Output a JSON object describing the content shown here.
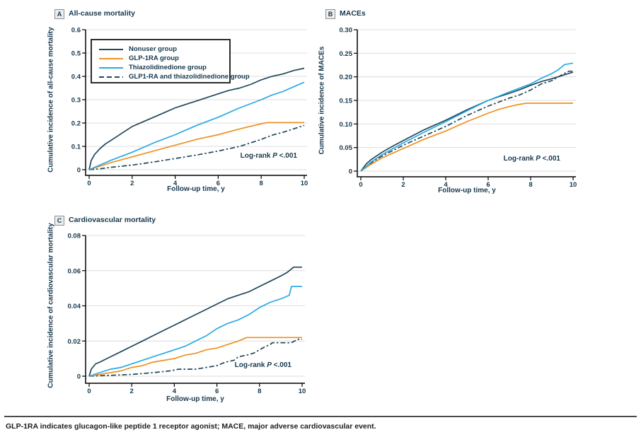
{
  "colors": {
    "navy": "#21475a",
    "orange": "#ee9120",
    "blue": "#29aae2",
    "text": "#16384d",
    "grid": "#dcdcdc",
    "axis": "#000000"
  },
  "legend": {
    "entries": [
      {
        "label": "Nonuser group",
        "color": "#21475a",
        "dashed": false
      },
      {
        "label": "GLP-1RA group",
        "color": "#ee9120",
        "dashed": false
      },
      {
        "label": "Thiazolidinedione group",
        "color": "#29aae2",
        "dashed": false
      },
      {
        "label": "GLP1-RA and thiazolidinedione group",
        "color": "#21475a",
        "dashed": true
      }
    ]
  },
  "annotation": {
    "prefix": "Log-rank ",
    "p": "P",
    "suffix": " <.001"
  },
  "caption": "GLP-1RA indicates glucagon-like peptide 1 receptor agonist; MACE, major adverse cardiovascular event.",
  "chart_data": [
    {
      "type": "line",
      "panel_label": "A",
      "title": "All-cause mortality",
      "ylabel": "Cumulative incidence of all-cause mortality",
      "xlabel": "Follow-up time, y",
      "xlim": [
        0,
        10
      ],
      "ylim": [
        0,
        0.6
      ],
      "xtick_values": [
        0,
        2,
        4,
        6,
        8,
        10
      ],
      "xtick_labels": [
        "0",
        "2",
        "4",
        "6",
        "8",
        "10"
      ],
      "ytick_values": [
        0,
        0.1,
        0.2,
        0.3,
        0.4,
        0.5,
        0.6
      ],
      "ytick_labels": [
        "0",
        "0.1",
        "0.2",
        "0.3",
        "0.4",
        "0.5",
        "0.6"
      ],
      "grid": true,
      "legend_position": "upper-left",
      "annotation": "Log-rank P <.001",
      "series": [
        {
          "name": "Nonuser group",
          "color": "#21475a",
          "dashed": false,
          "points": [
            [
              0,
              0
            ],
            [
              0.1,
              0.04
            ],
            [
              0.25,
              0.065
            ],
            [
              0.5,
              0.09
            ],
            [
              0.75,
              0.11
            ],
            [
              1,
              0.125
            ],
            [
              1.5,
              0.155
            ],
            [
              2,
              0.185
            ],
            [
              2.5,
              0.205
            ],
            [
              3,
              0.225
            ],
            [
              3.5,
              0.245
            ],
            [
              4,
              0.265
            ],
            [
              4.5,
              0.28
            ],
            [
              5,
              0.295
            ],
            [
              5.5,
              0.31
            ],
            [
              6,
              0.325
            ],
            [
              6.5,
              0.34
            ],
            [
              7,
              0.35
            ],
            [
              7.5,
              0.365
            ],
            [
              8,
              0.385
            ],
            [
              8.5,
              0.4
            ],
            [
              9,
              0.41
            ],
            [
              9.5,
              0.425
            ],
            [
              10,
              0.435
            ]
          ]
        },
        {
          "name": "GLP1-RA and thiazolidinedione group",
          "color": "#21475a",
          "dashed": true,
          "points": [
            [
              0,
              0
            ],
            [
              0.5,
              0.004
            ],
            [
              1,
              0.01
            ],
            [
              2,
              0.02
            ],
            [
              3,
              0.033
            ],
            [
              4,
              0.048
            ],
            [
              5,
              0.063
            ],
            [
              6,
              0.08
            ],
            [
              6.5,
              0.09
            ],
            [
              7,
              0.1
            ],
            [
              7.5,
              0.115
            ],
            [
              8,
              0.13
            ],
            [
              8.5,
              0.148
            ],
            [
              9,
              0.16
            ],
            [
              9.5,
              0.175
            ],
            [
              10,
              0.19
            ]
          ]
        },
        {
          "name": "GLP-1RA group",
          "color": "#ee9120",
          "dashed": false,
          "points": [
            [
              0,
              0
            ],
            [
              0.5,
              0.015
            ],
            [
              1,
              0.03
            ],
            [
              2,
              0.055
            ],
            [
              3,
              0.08
            ],
            [
              4,
              0.105
            ],
            [
              5,
              0.13
            ],
            [
              6,
              0.15
            ],
            [
              7,
              0.175
            ],
            [
              8,
              0.197
            ],
            [
              8.3,
              0.202
            ],
            [
              10,
              0.202
            ]
          ]
        },
        {
          "name": "Thiazolidinedione group",
          "color": "#29aae2",
          "dashed": false,
          "points": [
            [
              0,
              0
            ],
            [
              0.5,
              0.02
            ],
            [
              1,
              0.04
            ],
            [
              2,
              0.075
            ],
            [
              3,
              0.115
            ],
            [
              4,
              0.15
            ],
            [
              5,
              0.19
            ],
            [
              6,
              0.225
            ],
            [
              7,
              0.265
            ],
            [
              8,
              0.3
            ],
            [
              8.5,
              0.32
            ],
            [
              9,
              0.335
            ],
            [
              9.5,
              0.355
            ],
            [
              10,
              0.375
            ]
          ]
        }
      ]
    },
    {
      "type": "line",
      "panel_label": "B",
      "title": "MACEs",
      "ylabel": "Cumulative incidence of MACEs",
      "xlabel": "Follow-up time, y",
      "xlim": [
        0,
        10
      ],
      "ylim": [
        0,
        0.3
      ],
      "xtick_values": [
        0,
        2,
        4,
        6,
        8,
        10
      ],
      "xtick_labels": [
        "0",
        "2",
        "4",
        "6",
        "8",
        "10"
      ],
      "ytick_values": [
        0,
        0.05,
        0.1,
        0.15,
        0.2,
        0.25,
        0.3
      ],
      "ytick_labels": [
        "0",
        "0.05",
        "0.10",
        "0.15",
        "0.20",
        "0.25",
        "0.30"
      ],
      "grid": true,
      "legend_position": "none",
      "annotation": "Log-rank P <.001",
      "series": [
        {
          "name": "Nonuser group",
          "color": "#21475a",
          "dashed": false,
          "points": [
            [
              0,
              0
            ],
            [
              0.25,
              0.015
            ],
            [
              0.5,
              0.025
            ],
            [
              1,
              0.04
            ],
            [
              1.5,
              0.053
            ],
            [
              2,
              0.065
            ],
            [
              3,
              0.088
            ],
            [
              4,
              0.108
            ],
            [
              5,
              0.13
            ],
            [
              6,
              0.15
            ],
            [
              6.5,
              0.158
            ],
            [
              7,
              0.165
            ],
            [
              7.5,
              0.173
            ],
            [
              8,
              0.182
            ],
            [
              8.5,
              0.19
            ],
            [
              9,
              0.196
            ],
            [
              9.5,
              0.203
            ],
            [
              10,
              0.21
            ]
          ]
        },
        {
          "name": "GLP1-RA and thiazolidinedione group",
          "color": "#21475a",
          "dashed": true,
          "points": [
            [
              0,
              0
            ],
            [
              0.5,
              0.018
            ],
            [
              1,
              0.032
            ],
            [
              2,
              0.055
            ],
            [
              3,
              0.075
            ],
            [
              4,
              0.095
            ],
            [
              5,
              0.118
            ],
            [
              6,
              0.138
            ],
            [
              7,
              0.155
            ],
            [
              7.5,
              0.162
            ],
            [
              8,
              0.172
            ],
            [
              8.5,
              0.185
            ],
            [
              9,
              0.192
            ],
            [
              9.5,
              0.205
            ],
            [
              9.8,
              0.212
            ],
            [
              10,
              0.212
            ]
          ]
        },
        {
          "name": "GLP-1RA group",
          "color": "#ee9120",
          "dashed": false,
          "points": [
            [
              0,
              0
            ],
            [
              0.5,
              0.015
            ],
            [
              1,
              0.028
            ],
            [
              2,
              0.048
            ],
            [
              3,
              0.068
            ],
            [
              4,
              0.085
            ],
            [
              5,
              0.105
            ],
            [
              6,
              0.123
            ],
            [
              6.5,
              0.131
            ],
            [
              7,
              0.137
            ],
            [
              7.4,
              0.141
            ],
            [
              7.8,
              0.144
            ],
            [
              10,
              0.144
            ]
          ]
        },
        {
          "name": "Thiazolidinedione group",
          "color": "#29aae2",
          "dashed": false,
          "points": [
            [
              0,
              0
            ],
            [
              0.5,
              0.02
            ],
            [
              1,
              0.035
            ],
            [
              2,
              0.06
            ],
            [
              3,
              0.083
            ],
            [
              4,
              0.105
            ],
            [
              5,
              0.128
            ],
            [
              6,
              0.15
            ],
            [
              7,
              0.168
            ],
            [
              8,
              0.185
            ],
            [
              8.5,
              0.197
            ],
            [
              9,
              0.207
            ],
            [
              9.3,
              0.215
            ],
            [
              9.6,
              0.226
            ],
            [
              10,
              0.229
            ]
          ]
        }
      ]
    },
    {
      "type": "line",
      "panel_label": "C",
      "title": "Cardiovascular mortality",
      "ylabel": "Cumulative incidence of cardiovascular mortality",
      "xlabel": "Follow-up time, y",
      "xlim": [
        0,
        10
      ],
      "ylim": [
        0,
        0.08
      ],
      "xtick_values": [
        0,
        2,
        4,
        6,
        8,
        10
      ],
      "xtick_labels": [
        "0",
        "2",
        "4",
        "6",
        "8",
        "10"
      ],
      "ytick_values": [
        0,
        0.02,
        0.04,
        0.06,
        0.08
      ],
      "ytick_labels": [
        "0",
        "0.02",
        "0.04",
        "0.06",
        "0.08"
      ],
      "grid": true,
      "legend_position": "none",
      "annotation": "Log-rank P <.001",
      "series": [
        {
          "name": "Nonuser group",
          "color": "#21475a",
          "dashed": false,
          "points": [
            [
              0,
              0
            ],
            [
              0.1,
              0.004
            ],
            [
              0.3,
              0.007
            ],
            [
              0.5,
              0.008
            ],
            [
              1,
              0.011
            ],
            [
              1.5,
              0.014
            ],
            [
              2,
              0.017
            ],
            [
              2.5,
              0.02
            ],
            [
              3,
              0.023
            ],
            [
              3.5,
              0.026
            ],
            [
              4,
              0.029
            ],
            [
              4.5,
              0.032
            ],
            [
              5,
              0.035
            ],
            [
              5.5,
              0.038
            ],
            [
              6,
              0.041
            ],
            [
              6.5,
              0.044
            ],
            [
              7,
              0.046
            ],
            [
              7.5,
              0.048
            ],
            [
              8,
              0.051
            ],
            [
              8.5,
              0.054
            ],
            [
              9,
              0.057
            ],
            [
              9.3,
              0.059
            ],
            [
              9.5,
              0.061
            ],
            [
              9.6,
              0.062
            ],
            [
              10,
              0.062
            ]
          ]
        },
        {
          "name": "GLP1-RA and thiazolidinedione group",
          "color": "#21475a",
          "dashed": true,
          "points": [
            [
              0,
              0
            ],
            [
              1,
              0.0005
            ],
            [
              2,
              0.001
            ],
            [
              3,
              0.002
            ],
            [
              3.8,
              0.003
            ],
            [
              4.2,
              0.004
            ],
            [
              5,
              0.004
            ],
            [
              5.5,
              0.005
            ],
            [
              6,
              0.006
            ],
            [
              6.4,
              0.008
            ],
            [
              6.8,
              0.009
            ],
            [
              7,
              0.011
            ],
            [
              7.4,
              0.012
            ],
            [
              7.7,
              0.013
            ],
            [
              8,
              0.015
            ],
            [
              8.3,
              0.017
            ],
            [
              8.5,
              0.018
            ],
            [
              8.6,
              0.019
            ],
            [
              9.5,
              0.019
            ],
            [
              9.8,
              0.021
            ],
            [
              10,
              0.021
            ]
          ]
        },
        {
          "name": "GLP-1RA group",
          "color": "#ee9120",
          "dashed": false,
          "points": [
            [
              0,
              0
            ],
            [
              0.5,
              0.001
            ],
            [
              1,
              0.002
            ],
            [
              1.5,
              0.003
            ],
            [
              2,
              0.005
            ],
            [
              2.5,
              0.006
            ],
            [
              3,
              0.008
            ],
            [
              3.5,
              0.009
            ],
            [
              4,
              0.01
            ],
            [
              4.5,
              0.012
            ],
            [
              5,
              0.013
            ],
            [
              5.5,
              0.015
            ],
            [
              6,
              0.016
            ],
            [
              6.5,
              0.018
            ],
            [
              7,
              0.02
            ],
            [
              7.4,
              0.022
            ],
            [
              10,
              0.022
            ]
          ]
        },
        {
          "name": "Thiazolidinedione group",
          "color": "#29aae2",
          "dashed": false,
          "points": [
            [
              0,
              0
            ],
            [
              0.5,
              0.002
            ],
            [
              1,
              0.004
            ],
            [
              1.5,
              0.005
            ],
            [
              2,
              0.007
            ],
            [
              2.5,
              0.009
            ],
            [
              3,
              0.011
            ],
            [
              3.5,
              0.013
            ],
            [
              4,
              0.015
            ],
            [
              4.5,
              0.017
            ],
            [
              5,
              0.02
            ],
            [
              5.5,
              0.023
            ],
            [
              6,
              0.027
            ],
            [
              6.5,
              0.03
            ],
            [
              7,
              0.032
            ],
            [
              7.5,
              0.035
            ],
            [
              8,
              0.039
            ],
            [
              8.5,
              0.042
            ],
            [
              9,
              0.044
            ],
            [
              9.4,
              0.046
            ],
            [
              9.5,
              0.051
            ],
            [
              10,
              0.051
            ]
          ]
        }
      ]
    }
  ]
}
